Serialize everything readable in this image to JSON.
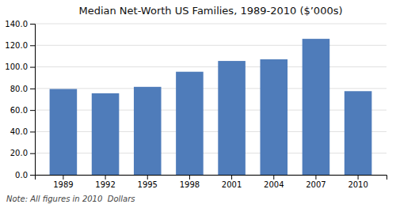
{
  "chart_data": {
    "type": "bar",
    "title": "Median Net-Worth US Families, 1989-2010 ($’000s)",
    "categories": [
      "1989",
      "1992",
      "1995",
      "1998",
      "2001",
      "2004",
      "2007",
      "2010"
    ],
    "values": [
      79.5,
      75.5,
      81.5,
      95.5,
      105.5,
      107.0,
      126.0,
      77.5
    ],
    "color": "#4f7cba",
    "ylim": [
      0,
      140
    ],
    "yticks": [
      {
        "value": 0,
        "label": "0.0"
      },
      {
        "value": 20,
        "label": "20.0"
      },
      {
        "value": 40,
        "label": "40.0"
      },
      {
        "value": 60,
        "label": "60.0"
      },
      {
        "value": 80,
        "label": "80.0"
      },
      {
        "value": 100,
        "label": "100.0"
      },
      {
        "value": 120,
        "label": "120.0"
      },
      {
        "value": 140,
        "label": "140.0"
      }
    ],
    "grid": true,
    "note": "Note: All figures in 2010  Dollars"
  }
}
